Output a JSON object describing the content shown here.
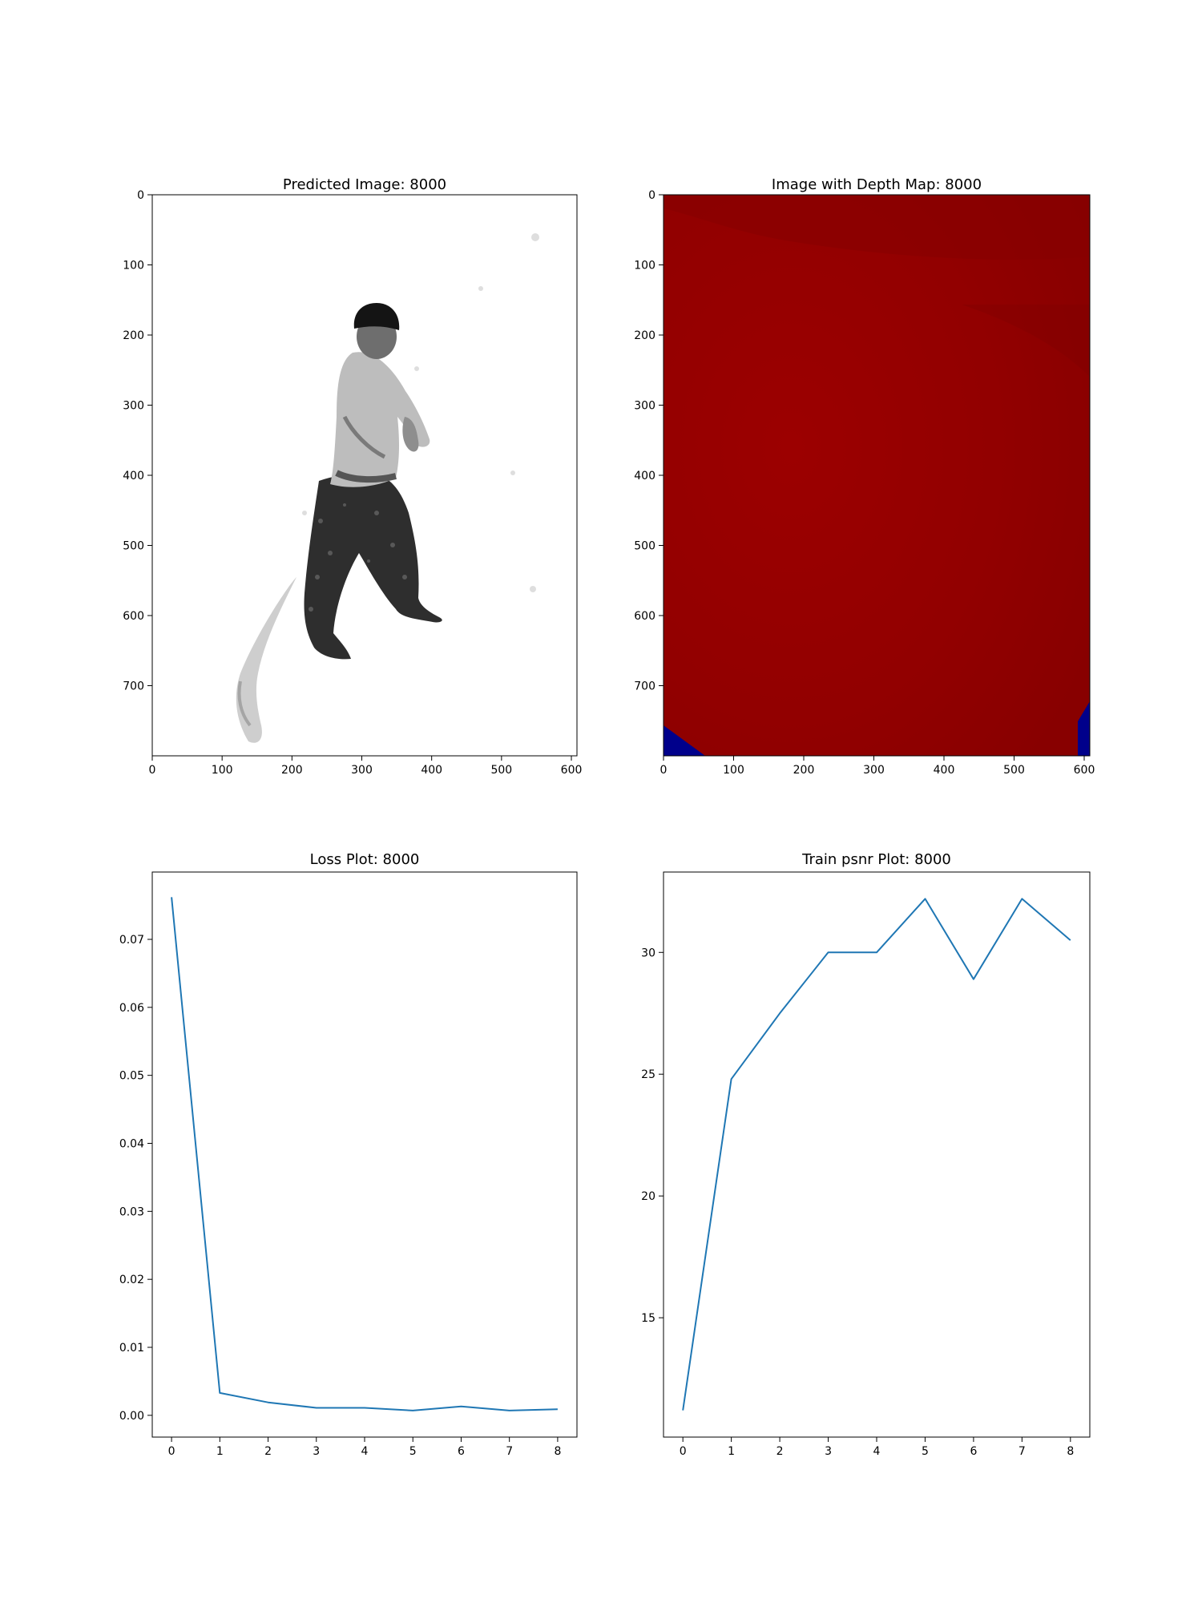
{
  "panels": {
    "predicted": {
      "title": "Predicted Image: 8000"
    },
    "depth": {
      "title": "Image with Depth Map: 8000"
    }
  },
  "image_axes": {
    "xticks": [
      0,
      100,
      200,
      300,
      400,
      500,
      600
    ],
    "yticks": [
      0,
      100,
      200,
      300,
      400,
      500,
      600,
      700
    ],
    "xlim": [
      0,
      608
    ],
    "ylim": [
      800,
      0
    ]
  },
  "colors": {
    "line": "#1f77b4",
    "depth_red": "#950000",
    "depth_blue": "#00008b"
  },
  "chart_data": [
    {
      "type": "line",
      "title": "Loss Plot: 8000",
      "x": [
        0,
        1,
        2,
        3,
        4,
        5,
        6,
        7,
        8
      ],
      "y": [
        0.0762,
        0.0033,
        0.0019,
        0.0011,
        0.0011,
        0.0007,
        0.0013,
        0.0007,
        0.0009
      ],
      "xticks": [
        0,
        1,
        2,
        3,
        4,
        5,
        6,
        7,
        8
      ],
      "xtick_labels": [
        "0",
        "1",
        "2",
        "3",
        "4",
        "5",
        "6",
        "7",
        "8"
      ],
      "yticks": [
        0.0,
        0.01,
        0.02,
        0.03,
        0.04,
        0.05,
        0.06,
        0.07
      ],
      "ytick_labels": [
        "0.00",
        "0.01",
        "0.02",
        "0.03",
        "0.04",
        "0.05",
        "0.06",
        "0.07"
      ],
      "xlim": [
        -0.4,
        8.4
      ],
      "ylim": [
        -0.0032,
        0.0799
      ],
      "grid": false
    },
    {
      "type": "line",
      "title": "Train psnr Plot: 8000",
      "x": [
        0,
        1,
        2,
        3,
        4,
        5,
        6,
        7,
        8
      ],
      "y": [
        11.2,
        24.8,
        27.5,
        30.0,
        30.0,
        32.2,
        28.9,
        32.2,
        30.5
      ],
      "xticks": [
        0,
        1,
        2,
        3,
        4,
        5,
        6,
        7,
        8
      ],
      "xtick_labels": [
        "0",
        "1",
        "2",
        "3",
        "4",
        "5",
        "6",
        "7",
        "8"
      ],
      "yticks": [
        15,
        20,
        25,
        30
      ],
      "ytick_labels": [
        "15",
        "20",
        "25",
        "30"
      ],
      "xlim": [
        -0.4,
        8.4
      ],
      "ylim": [
        10.1,
        33.3
      ],
      "grid": false
    }
  ]
}
